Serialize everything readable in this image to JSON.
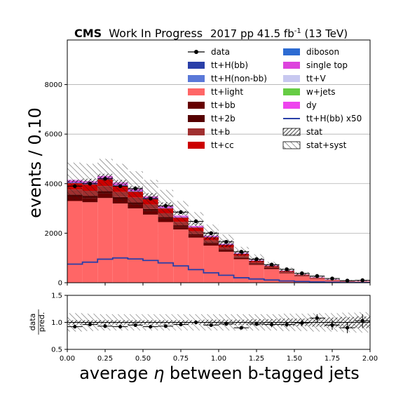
{
  "header": {
    "experiment": "CMS",
    "status": "Work In Progress",
    "lumi_prefix": "2017 pp 41.5 fb",
    "lumi_sup": "-1",
    "lumi_suffix": " (13 TeV)"
  },
  "chart_data": [
    {
      "type": "stacked-histogram",
      "ylabel": "events / 0.10",
      "xlim": [
        0,
        2
      ],
      "ylim": [
        0,
        9800
      ],
      "y_ticks": [
        0,
        2000,
        4000,
        6000,
        8000
      ],
      "grid": true,
      "legend_position": "top-right",
      "bin_edges": [
        0.0,
        0.1,
        0.2,
        0.3,
        0.4,
        0.5,
        0.6,
        0.7,
        0.8,
        0.9,
        1.0,
        1.1,
        1.2,
        1.3,
        1.4,
        1.5,
        1.6,
        1.7,
        1.8,
        1.9,
        2.0
      ],
      "stack": [
        {
          "name": "tt+light",
          "color": "#ff6666",
          "values": [
            3300,
            3250,
            3420,
            3200,
            3000,
            2750,
            2450,
            2150,
            1820,
            1500,
            1250,
            950,
            720,
            550,
            380,
            260,
            160,
            90,
            55,
            45
          ]
        },
        {
          "name": "tt+bb",
          "color": "#660000",
          "values": [
            170,
            170,
            180,
            170,
            160,
            150,
            130,
            110,
            95,
            80,
            65,
            50,
            40,
            30,
            22,
            16,
            11,
            7,
            5,
            4
          ]
        },
        {
          "name": "tt+2b",
          "color": "#550000",
          "values": [
            90,
            90,
            95,
            90,
            85,
            80,
            70,
            60,
            50,
            42,
            34,
            26,
            20,
            15,
            11,
            8,
            6,
            4,
            3,
            2
          ]
        },
        {
          "name": "tt+b",
          "color": "#a03030",
          "values": [
            200,
            200,
            210,
            200,
            190,
            175,
            155,
            135,
            115,
            95,
            80,
            60,
            45,
            35,
            25,
            18,
            12,
            8,
            5,
            4
          ]
        },
        {
          "name": "tt+cc",
          "color": "#cc0000",
          "values": [
            260,
            260,
            270,
            255,
            240,
            220,
            195,
            170,
            145,
            120,
            100,
            75,
            58,
            44,
            32,
            22,
            15,
            10,
            6,
            5
          ]
        },
        {
          "name": "tt+H(bb)",
          "color": "#2a3fa8",
          "values": [
            15,
            15,
            16,
            15,
            14,
            13,
            11,
            10,
            8,
            7,
            6,
            4,
            3,
            2,
            2,
            1,
            1,
            1,
            0,
            0
          ]
        },
        {
          "name": "tt+H(non-bb)",
          "color": "#5a78d8",
          "values": [
            10,
            10,
            10,
            10,
            9,
            8,
            7,
            6,
            5,
            4,
            4,
            3,
            2,
            2,
            1,
            1,
            1,
            0,
            0,
            0
          ]
        },
        {
          "name": "diboson",
          "color": "#2d6bd2",
          "values": [
            3,
            3,
            3,
            3,
            3,
            3,
            2,
            2,
            2,
            2,
            1,
            1,
            1,
            1,
            0,
            0,
            0,
            0,
            0,
            0
          ]
        },
        {
          "name": "single top",
          "color": "#dd44dd",
          "values": [
            60,
            60,
            62,
            60,
            57,
            52,
            47,
            41,
            35,
            29,
            24,
            18,
            14,
            11,
            8,
            6,
            4,
            3,
            2,
            1
          ]
        },
        {
          "name": "tt+V",
          "color": "#c8c8f0",
          "values": [
            10,
            10,
            10,
            10,
            9,
            8,
            7,
            6,
            5,
            4,
            4,
            3,
            2,
            2,
            1,
            1,
            1,
            0,
            0,
            0
          ]
        },
        {
          "name": "w+jets",
          "color": "#66cc44",
          "values": [
            5,
            5,
            5,
            5,
            4,
            4,
            3,
            3,
            2,
            2,
            2,
            1,
            1,
            1,
            1,
            0,
            0,
            0,
            0,
            0
          ]
        },
        {
          "name": "dy",
          "color": "#ee44ee",
          "values": [
            27,
            27,
            29,
            27,
            24,
            22,
            17,
            17,
            13,
            15,
            9,
            9,
            9,
            6,
            7,
            2,
            9,
            7,
            4,
            4
          ]
        }
      ],
      "signal": {
        "name": "tt+H(bb) x50",
        "color": "#2a3fa8",
        "values": [
          750,
          830,
          950,
          1000,
          960,
          900,
          800,
          680,
          530,
          400,
          300,
          200,
          150,
          110,
          70,
          50,
          30,
          20,
          10,
          5
        ]
      },
      "data_points": {
        "name": "data",
        "values": [
          3900,
          4000,
          4200,
          3900,
          3800,
          3400,
          3100,
          2850,
          2480,
          2000,
          1650,
          1250,
          950,
          730,
          540,
          380,
          270,
          170,
          85,
          100
        ]
      },
      "stat_band": {
        "name": "stat",
        "up": [
          4150,
          4200,
          4400,
          4150,
          3900,
          3620,
          3250,
          2900,
          2450,
          2050,
          1720,
          1300,
          1000,
          760,
          560,
          390,
          250,
          160,
          100,
          85
        ],
        "down": [
          4050,
          4000,
          4200,
          3950,
          3700,
          3420,
          3050,
          2740,
          2310,
          1750,
          1450,
          1100,
          850,
          640,
          450,
          300,
          200,
          120,
          75,
          65
        ]
      },
      "syst_band": {
        "name": "stat+syst",
        "up": [
          4850,
          4800,
          5000,
          4800,
          4500,
          4150,
          3750,
          3300,
          2850,
          2350,
          1950,
          1450,
          1150,
          850,
          620,
          440,
          280,
          180,
          110,
          90
        ],
        "down": [
          3350,
          3400,
          3600,
          3300,
          3100,
          2880,
          2550,
          2300,
          1950,
          1600,
          1350,
          1050,
          800,
          610,
          430,
          310,
          210,
          130,
          80,
          60
        ]
      },
      "legend_columns": [
        [
          "data",
          "tt+H(bb)",
          "tt+H(non-bb)",
          "tt+light",
          "tt+bb",
          "tt+2b",
          "tt+b",
          "tt+cc"
        ],
        [
          "diboson",
          "single top",
          "tt+V",
          "w+jets",
          "dy",
          "tt+H(bb) x50",
          "stat",
          "stat+syst"
        ]
      ]
    },
    {
      "type": "ratio",
      "ylabel": "data\npred.",
      "ylabel_top": "data",
      "ylabel_bottom": "pred.",
      "xlabel_pre": "average ",
      "xlabel_symbol": "η",
      "xlabel_post": " between b-tagged jets",
      "xlim": [
        0,
        2
      ],
      "ylim": [
        0.5,
        1.5
      ],
      "y_ticks": [
        0.5,
        1.0,
        1.5
      ],
      "x_ticks": [
        0.0,
        0.25,
        0.5,
        0.75,
        1.0,
        1.25,
        1.5,
        1.75,
        2.0
      ],
      "ratio_values": [
        0.92,
        0.96,
        0.93,
        0.92,
        0.95,
        0.92,
        0.93,
        0.96,
        1.0,
        0.95,
        0.97,
        0.9,
        0.97,
        0.96,
        0.96,
        0.99,
        1.08,
        0.95,
        0.9,
        1.03
      ],
      "ratio_err": [
        0.02,
        0.02,
        0.02,
        0.02,
        0.02,
        0.02,
        0.02,
        0.02,
        0.02,
        0.03,
        0.03,
        0.03,
        0.04,
        0.05,
        0.05,
        0.06,
        0.07,
        0.09,
        0.1,
        0.12
      ],
      "stat_band": {
        "up": [
          1.04,
          1.04,
          1.04,
          1.04,
          1.04,
          1.04,
          1.04,
          1.04,
          1.04,
          1.05,
          1.05,
          1.05,
          1.06,
          1.06,
          1.07,
          1.07,
          1.08,
          1.09,
          1.1,
          1.11
        ],
        "down": [
          0.96,
          0.96,
          0.96,
          0.96,
          0.96,
          0.96,
          0.96,
          0.96,
          0.96,
          0.95,
          0.95,
          0.95,
          0.94,
          0.94,
          0.93,
          0.93,
          0.92,
          0.91,
          0.9,
          0.89
        ]
      },
      "syst_band": {
        "up": [
          1.17,
          1.16,
          1.15,
          1.15,
          1.15,
          1.15,
          1.15,
          1.15,
          1.15,
          1.15,
          1.15,
          1.15,
          1.15,
          1.15,
          1.16,
          1.16,
          1.17,
          1.17,
          1.18,
          1.19
        ],
        "down": [
          0.83,
          0.84,
          0.85,
          0.85,
          0.85,
          0.85,
          0.85,
          0.85,
          0.85,
          0.85,
          0.85,
          0.85,
          0.85,
          0.85,
          0.84,
          0.84,
          0.83,
          0.83,
          0.82,
          0.81
        ]
      }
    }
  ]
}
